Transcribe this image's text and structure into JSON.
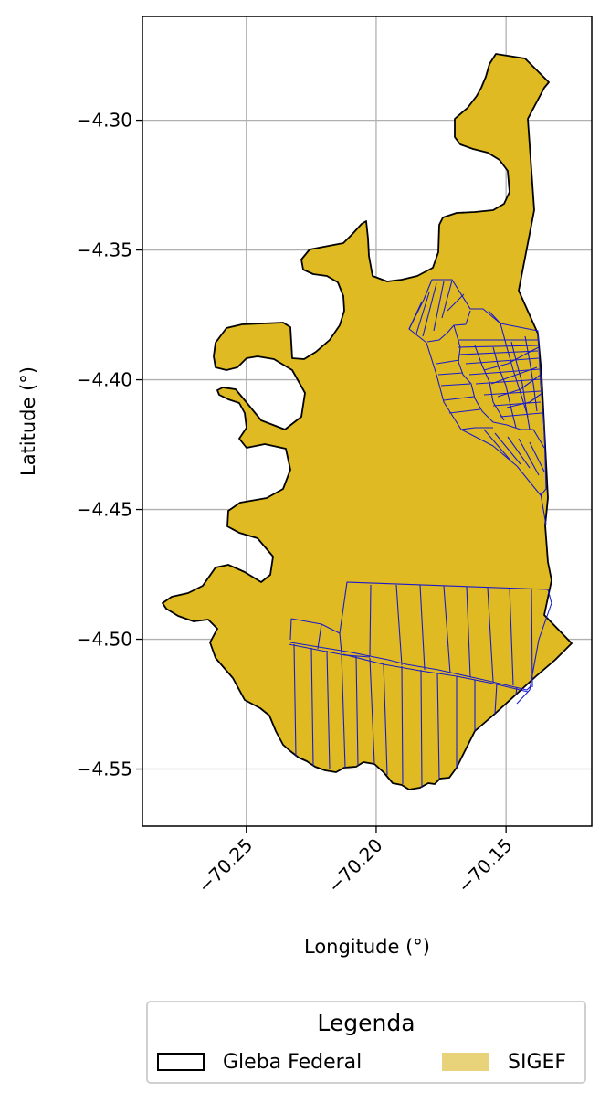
{
  "chart_data": {
    "type": "map",
    "xlabel": "Longitude (°)",
    "ylabel": "Latitude (°)",
    "xlim": [
      -70.29,
      -70.117
    ],
    "ylim": [
      -4.572,
      -4.26
    ],
    "xticks": [
      {
        "value": -70.25,
        "label": "−70.25"
      },
      {
        "value": -70.2,
        "label": "−70.20"
      },
      {
        "value": -70.15,
        "label": "−70.15"
      }
    ],
    "yticks": [
      {
        "value": -4.3,
        "label": "−4.30"
      },
      {
        "value": -4.35,
        "label": "−4.35"
      },
      {
        "value": -4.4,
        "label": "−4.40"
      },
      {
        "value": -4.45,
        "label": "−4.45"
      },
      {
        "value": -4.5,
        "label": "−4.50"
      },
      {
        "value": -4.55,
        "label": "−4.55"
      }
    ],
    "grid": true,
    "legend": {
      "title": "Legenda",
      "placement": "below",
      "items": [
        {
          "label": "Gleba Federal",
          "style": "outline",
          "edge_color": "#000000"
        },
        {
          "label": "SIGEF",
          "style": "fill",
          "fill_color": "#e8d27a"
        }
      ]
    },
    "colors": {
      "gleba_fill": "#dfba22",
      "gleba_edge": "#000000",
      "sigef_edge": "#1a1acc",
      "grid": "#b0b0b0"
    }
  }
}
